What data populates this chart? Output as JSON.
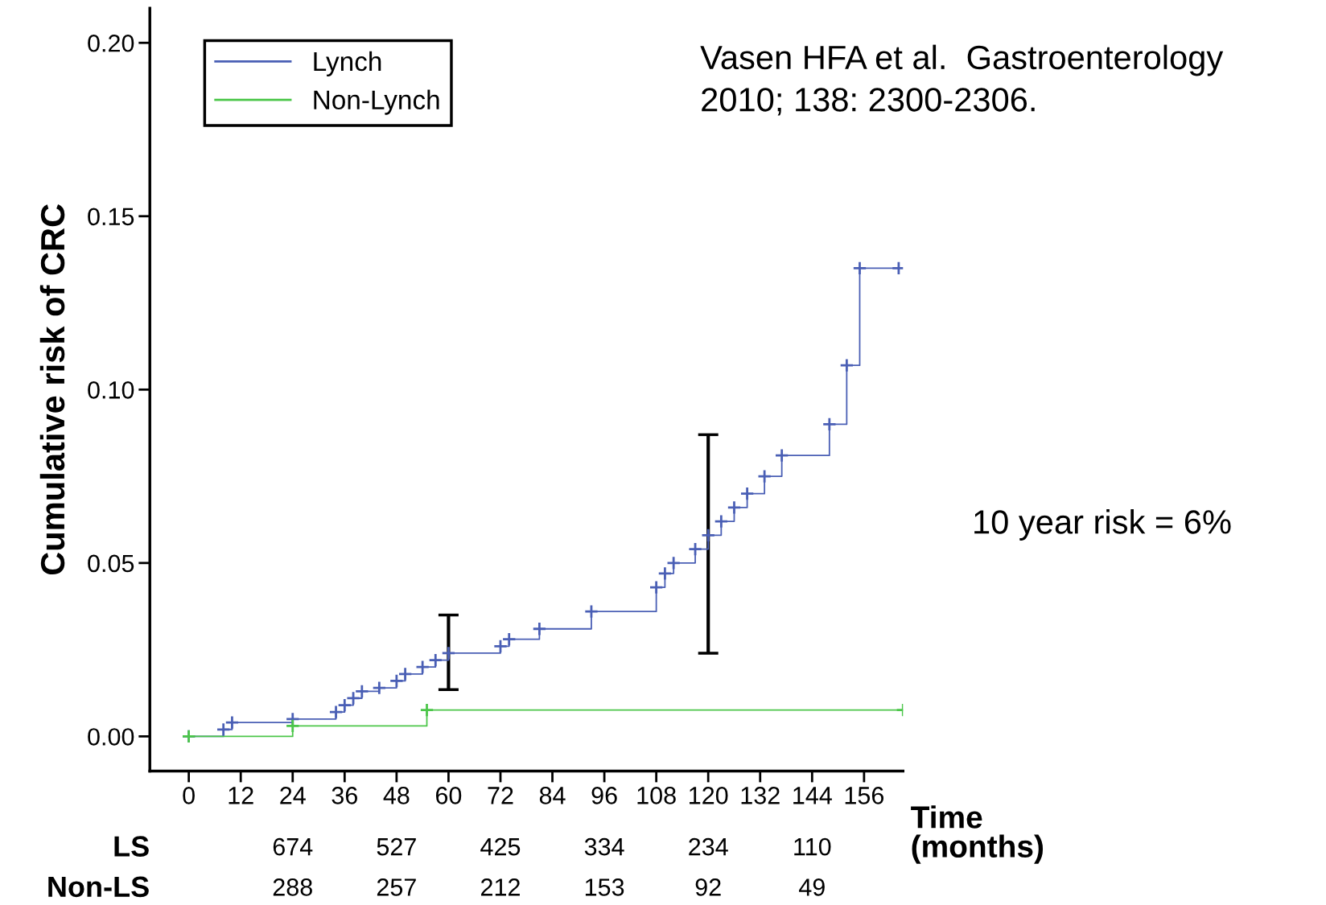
{
  "chart_data": {
    "type": "step",
    "ylabel": "Cumulative risk of CRC",
    "xlabel": "Time\n(months)",
    "xlim": [
      -9,
      165
    ],
    "ylim": [
      -0.01,
      0.21
    ],
    "xticks": [
      0,
      12,
      24,
      36,
      48,
      60,
      72,
      84,
      96,
      108,
      120,
      132,
      144,
      156
    ],
    "yticks": [
      {
        "value": 0,
        "label": "0.00"
      },
      {
        "value": 0.05,
        "label": "0.05"
      },
      {
        "value": 0.1,
        "label": "0.10"
      },
      {
        "value": 0.15,
        "label": "0.15"
      },
      {
        "value": 0.2,
        "label": "0.20"
      }
    ],
    "legend": "top left",
    "marker": "cross",
    "grid": false,
    "series": [
      {
        "name": "Lynch",
        "color": "#4a5fb5",
        "x": [
          0,
          8,
          10,
          24,
          34,
          36,
          38,
          40,
          44,
          48,
          50,
          54,
          57,
          60,
          72,
          74,
          81,
          93,
          108,
          110,
          112,
          117,
          120,
          123,
          126,
          129,
          133,
          137,
          148,
          152,
          155,
          164
        ],
        "values": [
          0,
          0.002,
          0.004,
          0.005,
          0.007,
          0.009,
          0.011,
          0.013,
          0.014,
          0.016,
          0.018,
          0.02,
          0.022,
          0.024,
          0.026,
          0.028,
          0.031,
          0.036,
          0.043,
          0.047,
          0.05,
          0.054,
          0.058,
          0.062,
          0.066,
          0.07,
          0.075,
          0.081,
          0.09,
          0.107,
          0.135,
          0.135
        ],
        "errors": [
          null,
          null,
          null,
          null,
          null,
          null,
          null,
          null,
          null,
          null,
          null,
          null,
          null,
          [
            0.0135,
            0.035
          ],
          null,
          null,
          null,
          null,
          null,
          null,
          null,
          null,
          [
            0.024,
            0.087
          ],
          null,
          null,
          null,
          null,
          null,
          null,
          null,
          null,
          null
        ]
      },
      {
        "name": "Non-Lynch",
        "color": "#4cc64a",
        "x": [
          0,
          24,
          55,
          165
        ],
        "values": [
          0,
          0.003,
          0.0076,
          0.0076
        ]
      }
    ],
    "annotations": [
      {
        "text": "Vasen HFA et al.  Gastroenterology\n2010; 138: 2300-2306."
      },
      "10 year risk = 6%",
      "LS",
      "674",
      "527",
      "425",
      "334",
      "234",
      "110",
      "Non-LS",
      "288",
      "257",
      "212",
      "153",
      "92",
      "49"
    ]
  }
}
